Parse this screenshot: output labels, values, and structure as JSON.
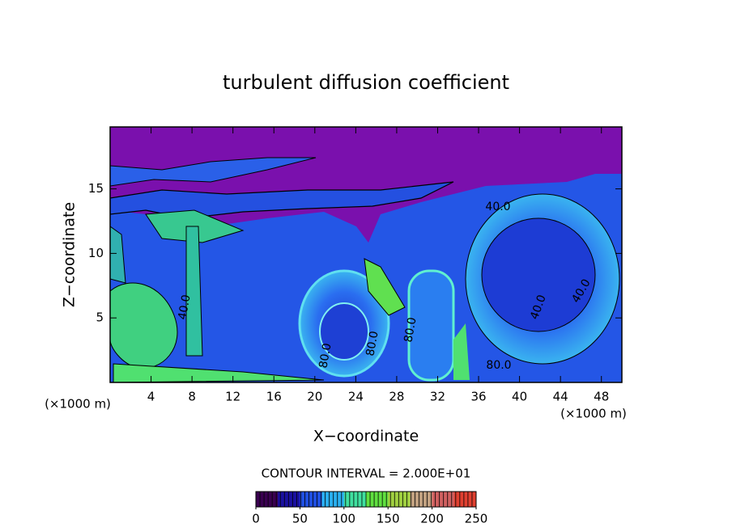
{
  "chart_data": {
    "type": "contour",
    "title": "turbulent diffusion coefficient",
    "x_label": "X−coordinate",
    "y_label": "Z−coordinate",
    "x_unit_label": "(×1000 m)",
    "y_unit_label": "(×1000 m)",
    "xlim": [
      0,
      50
    ],
    "xticks": [
      4,
      8,
      12,
      16,
      20,
      24,
      28,
      32,
      36,
      40,
      44,
      48
    ],
    "ylim": [
      0,
      19.8
    ],
    "yticks": [
      5,
      10,
      15
    ],
    "contour_labels": [
      "40.0",
      "40.0",
      "40.0",
      "40.0",
      "80.0",
      "80.0",
      "80.0",
      "80.0"
    ],
    "colorbar": {
      "label": "CONTOUR INTERVAL = 2.000E+01",
      "lim": [
        0,
        250
      ],
      "ticks": [
        0,
        50,
        100,
        150,
        200,
        250
      ],
      "colors": [
        "#3a0050",
        "#1a10a0",
        "#1f4fe0",
        "#2ab0f0",
        "#40e0a0",
        "#60e040",
        "#a0d040",
        "#c0a080",
        "#d06060",
        "#e04030"
      ]
    }
  }
}
